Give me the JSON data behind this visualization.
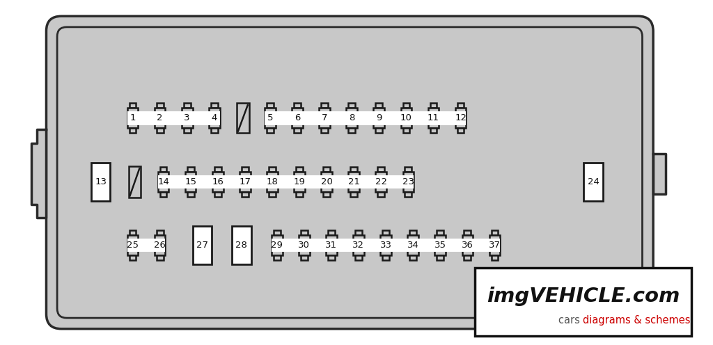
{
  "bg_color": "#ffffff",
  "panel_color": "#c8c8c8",
  "panel_border_color": "#2a2a2a",
  "panel_inner_border": "#2a2a2a",
  "fuse_bg_color": "#ffffff",
  "fuse_border_color": "#1a1a1a",
  "label_bg_color": "#ffffff",
  "label_text_color": "#111111",
  "watermark_border": "#111111",
  "watermark_bg": "#ffffff",
  "watermark_text1": "imgVEHICLE.com",
  "watermark_text2_black": "cars ",
  "watermark_text2_red": "diagrams & schemes",
  "row1_labels_left": [
    "1",
    "2",
    "3",
    "4"
  ],
  "row1_labels_right": [
    "5",
    "6",
    "7",
    "8",
    "9",
    "10",
    "11",
    "12"
  ],
  "row2_labels_mid": [
    "14",
    "15",
    "16",
    "17",
    "18",
    "19",
    "20",
    "21",
    "22",
    "23"
  ],
  "row3_labels_left": [
    "25",
    "26"
  ],
  "row3_labels_right": [
    "29",
    "30",
    "31",
    "32",
    "33",
    "34",
    "35",
    "36",
    "37"
  ]
}
